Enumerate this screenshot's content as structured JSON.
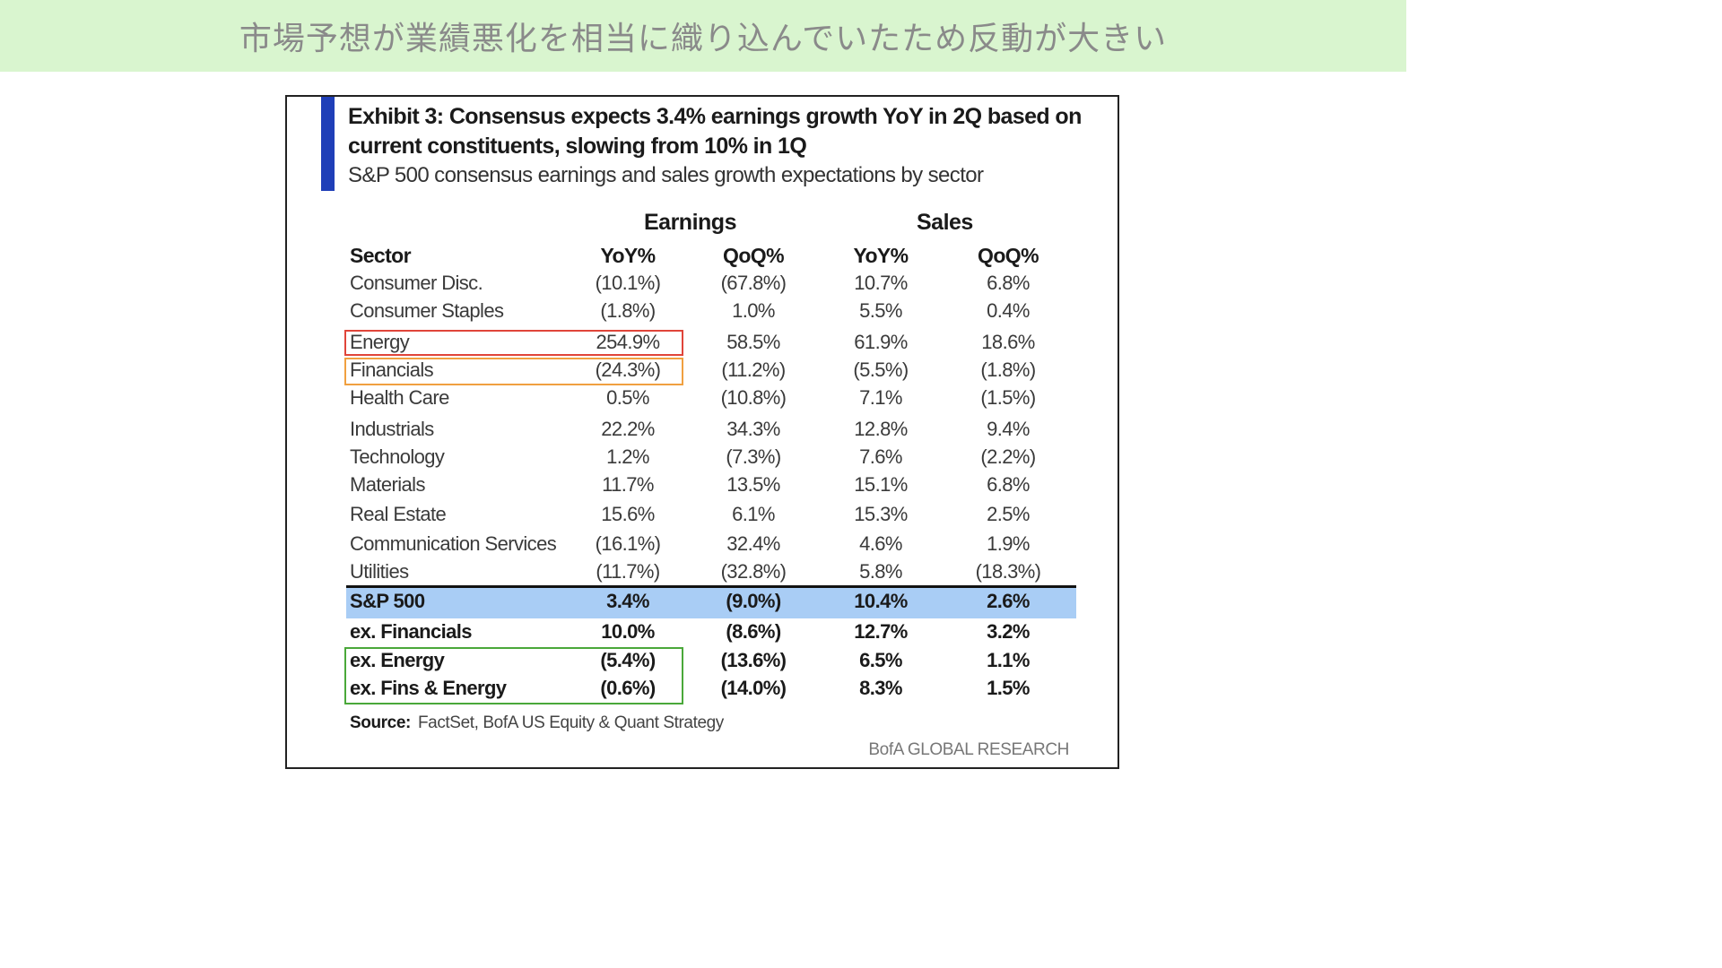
{
  "banner": {
    "text": "市場予想が業績悪化を相当に織り込んでいたため反動が大きい"
  },
  "exhibit": {
    "title": "Exhibit 3: Consensus expects 3.4% earnings growth YoY in 2Q based on current constituents, slowing from 10% in 1Q",
    "subtitle": "S&P 500 consensus earnings and sales growth expectations by sector",
    "groups": {
      "earnings": "Earnings",
      "sales": "Sales"
    },
    "columns": [
      "Sector",
      "YoY%",
      "QoQ%",
      "YoY%",
      "QoQ%"
    ],
    "rows": [
      [
        "Consumer Disc.",
        "(10.1%)",
        "(67.8%)",
        "10.7%",
        "6.8%"
      ],
      [
        "Consumer Staples",
        "(1.8%)",
        "1.0%",
        "5.5%",
        "0.4%"
      ],
      [
        "Energy",
        "254.9%",
        "58.5%",
        "61.9%",
        "18.6%"
      ],
      [
        "Financials",
        "(24.3%)",
        "(11.2%)",
        "(5.5%)",
        "(1.8%)"
      ],
      [
        "Health Care",
        "0.5%",
        "(10.8%)",
        "7.1%",
        "(1.5%)"
      ],
      [
        "Industrials",
        "22.2%",
        "34.3%",
        "12.8%",
        "9.4%"
      ],
      [
        "Technology",
        "1.2%",
        "(7.3%)",
        "7.6%",
        "(2.2%)"
      ],
      [
        "Materials",
        "11.7%",
        "13.5%",
        "15.1%",
        "6.8%"
      ],
      [
        "Real Estate",
        "15.6%",
        "6.1%",
        "15.3%",
        "2.5%"
      ],
      [
        "Communication Services",
        "(16.1%)",
        "32.4%",
        "4.6%",
        "1.9%"
      ],
      [
        "Utilities",
        "(11.7%)",
        "(32.8%)",
        "5.8%",
        "(18.3%)"
      ]
    ],
    "summary_rows": [
      [
        "S&P 500",
        "3.4%",
        "(9.0%)",
        "10.4%",
        "2.6%"
      ],
      [
        "ex. Financials",
        "10.0%",
        "(8.6%)",
        "12.7%",
        "3.2%"
      ],
      [
        "ex. Energy",
        "(5.4%)",
        "(13.6%)",
        "6.5%",
        "1.1%"
      ],
      [
        "ex. Fins & Energy",
        "(0.6%)",
        "(14.0%)",
        "8.3%",
        "1.5%"
      ]
    ],
    "source_label": "Source:",
    "source_text": "FactSet, BofA US Equity & Quant Strategy",
    "brand": "BofA GLOBAL RESEARCH"
  },
  "colors": {
    "banner_bg": "#d9f5cf",
    "accent_bar": "#1f3fb8",
    "sp500_band": "#a9cdf5",
    "highlight_energy": "#e0453a",
    "highlight_financials": "#f0a040",
    "highlight_ex_energy": "#4aa83a"
  }
}
